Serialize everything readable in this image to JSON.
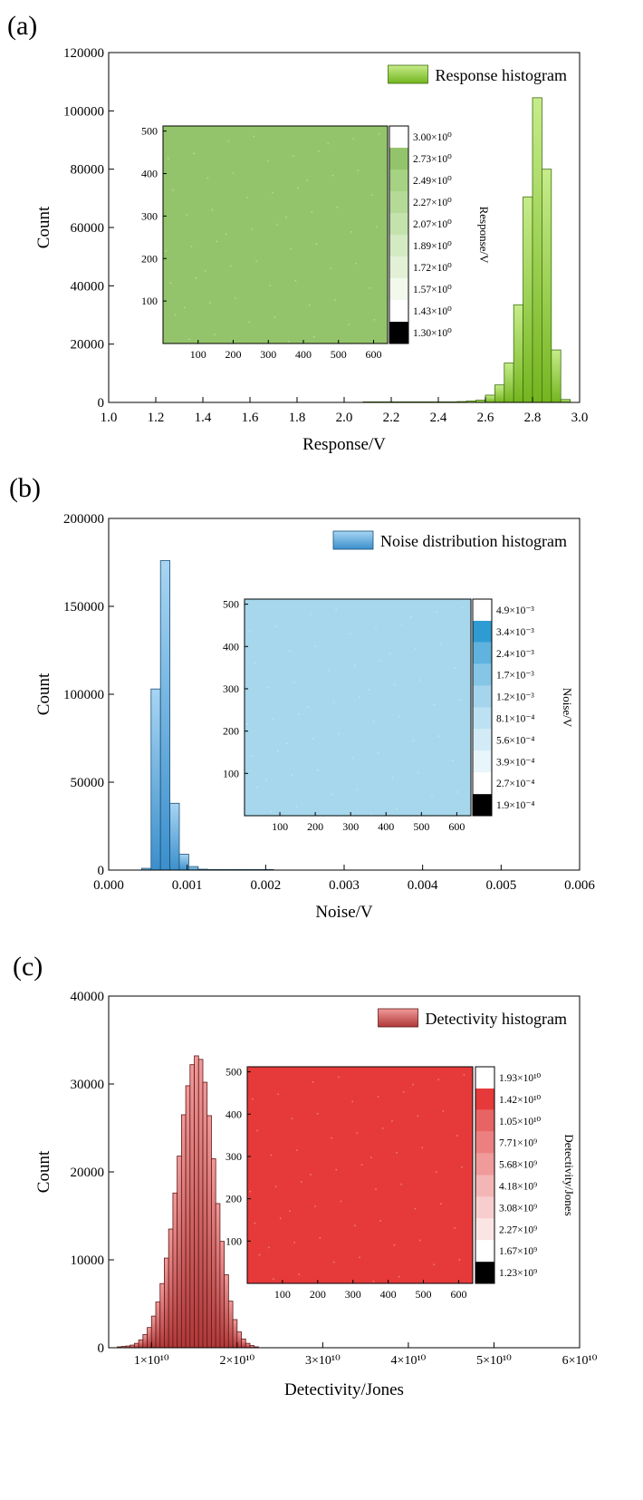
{
  "chart_data": [
    {
      "panel_label": "(a)",
      "type": "bar",
      "xlabel": "Response/V",
      "ylabel": "Count",
      "xlim": [
        1.0,
        3.0
      ],
      "ylim": [
        0,
        120000
      ],
      "x_ticks": [
        "1.0",
        "1.2",
        "1.4",
        "1.6",
        "1.8",
        "2.0",
        "2.2",
        "2.4",
        "2.6",
        "2.8",
        "3.0"
      ],
      "y_ticks": [
        "0",
        "20000",
        "40000",
        "60000",
        "80000",
        "100000",
        "120000"
      ],
      "legend_position": "top-right",
      "colors": {
        "fill_top": "#c6ec8a",
        "fill_bottom": "#74b51f",
        "stroke": "#3e6d10"
      },
      "series": [
        {
          "name": "Response histogram",
          "bin_width": 0.04,
          "x": [
            2.08,
            2.12,
            2.16,
            2.2,
            2.24,
            2.28,
            2.32,
            2.36,
            2.4,
            2.44,
            2.48,
            2.52,
            2.56,
            2.6,
            2.64,
            2.68,
            2.72,
            2.76,
            2.8,
            2.84,
            2.88,
            2.92
          ],
          "values": [
            200,
            200,
            200,
            200,
            200,
            200,
            200,
            200,
            200,
            200,
            300,
            500,
            800,
            2500,
            6000,
            13500,
            33500,
            70500,
            104500,
            80000,
            18000,
            1000
          ]
        }
      ],
      "inset": {
        "type": "heatmap",
        "x_ticks": [
          "100",
          "200",
          "300",
          "400",
          "500",
          "600"
        ],
        "y_ticks": [
          "100",
          "200",
          "300",
          "400",
          "500"
        ],
        "xlim": [
          0,
          640
        ],
        "ylim": [
          0,
          512
        ],
        "fill_color": "#93c46b",
        "colorbar_label": "Response/V",
        "colorbar_levels": [
          "1.30×10⁰",
          "1.43×10⁰",
          "1.57×10⁰",
          "1.72×10⁰",
          "1.89×10⁰",
          "2.07×10⁰",
          "2.27×10⁰",
          "2.49×10⁰",
          "2.73×10⁰",
          "3.00×10⁰"
        ],
        "colorbar_colors": [
          "#000000",
          "#ffffff",
          "#f2f9ec",
          "#e2f1d6",
          "#d4eac3",
          "#c4e2ac",
          "#b5da98",
          "#a5d283",
          "#93c46b",
          "#ffffff"
        ]
      }
    },
    {
      "panel_label": "(b)",
      "type": "bar",
      "xlabel": "Noise/V",
      "ylabel": "Count",
      "xlim": [
        0.0,
        0.006
      ],
      "ylim": [
        0,
        200000
      ],
      "x_ticks": [
        "0.000",
        "0.001",
        "0.002",
        "0.003",
        "0.004",
        "0.005",
        "0.006"
      ],
      "y_ticks": [
        "0",
        "50000",
        "100000",
        "150000",
        "200000"
      ],
      "legend_position": "top-right",
      "colors": {
        "fill_top": "#a8d5f2",
        "fill_bottom": "#3b8fcc",
        "stroke": "#1a4f78"
      },
      "series": [
        {
          "name": "Noise distribution histogram",
          "bin_width": 0.00012,
          "x": [
            0.00042,
            0.00054,
            0.00066,
            0.00078,
            0.0009,
            0.00102,
            0.00114,
            0.00126,
            0.00138,
            0.0015,
            0.00162,
            0.00174,
            0.00186,
            0.00198
          ],
          "values": [
            1000,
            103000,
            176000,
            38000,
            9000,
            2000,
            500,
            300,
            300,
            300,
            300,
            300,
            300,
            300
          ]
        }
      ],
      "inset": {
        "type": "heatmap",
        "x_ticks": [
          "100",
          "200",
          "300",
          "400",
          "500",
          "600"
        ],
        "y_ticks": [
          "100",
          "200",
          "300",
          "400",
          "500"
        ],
        "xlim": [
          0,
          640
        ],
        "ylim": [
          0,
          512
        ],
        "fill_color": "#a6d7ec",
        "colorbar_label": "Noise/V",
        "colorbar_levels": [
          "1.9×10⁻⁴",
          "2.7×10⁻⁴",
          "3.9×10⁻⁴",
          "5.6×10⁻⁴",
          "8.1×10⁻⁴",
          "1.2×10⁻³",
          "1.7×10⁻³",
          "2.4×10⁻³",
          "3.4×10⁻³",
          "4.9×10⁻³"
        ],
        "colorbar_colors": [
          "#000000",
          "#ffffff",
          "#e8f5fb",
          "#d2ebf7",
          "#bce1f2",
          "#a4d5ec",
          "#85c6e6",
          "#5fb3de",
          "#2f9bd3",
          "#ffffff"
        ]
      }
    },
    {
      "panel_label": "(c)",
      "type": "bar",
      "xlabel": "Detectivity/Jones",
      "ylabel": "Count",
      "xlim": [
        5000000000.0,
        60000000000.0
      ],
      "ylim": [
        0,
        40000
      ],
      "x_ticks": [
        "1×10¹⁰",
        "2×10¹⁰",
        "3×10¹⁰",
        "4×10¹⁰",
        "5×10¹⁰",
        "6×10¹⁰"
      ],
      "y_ticks": [
        "0",
        "10000",
        "20000",
        "30000",
        "40000"
      ],
      "legend_position": "top-right",
      "colors": {
        "fill_top": "#f19a9a",
        "fill_bottom": "#b03838",
        "stroke": "#5e1818"
      },
      "series": [
        {
          "name": "Detectivity histogram",
          "bin_width": 500000000.0,
          "x": [
            6000000000.0,
            6500000000.0,
            7000000000.0,
            7500000000.0,
            8000000000.0,
            8500000000.0,
            9000000000.0,
            9500000000.0,
            10000000000.0,
            10500000000.0,
            11000000000.0,
            11500000000.0,
            12000000000.0,
            12500000000.0,
            13000000000.0,
            13500000000.0,
            14000000000.0,
            14500000000.0,
            15000000000.0,
            15500000000.0,
            16000000000.0,
            16500000000.0,
            17000000000.0,
            17500000000.0,
            18000000000.0,
            18500000000.0,
            19000000000.0,
            19500000000.0,
            20000000000.0,
            20500000000.0,
            21000000000.0,
            21500000000.0,
            22000000000.0
          ],
          "values": [
            100,
            150,
            200,
            300,
            500,
            900,
            1500,
            2300,
            3600,
            5200,
            7300,
            10200,
            13500,
            17600,
            21800,
            26500,
            29800,
            32200,
            33200,
            32800,
            30200,
            26400,
            21500,
            16400,
            12100,
            8300,
            5300,
            3200,
            1800,
            1000,
            500,
            250,
            100
          ]
        }
      ],
      "inset": {
        "type": "heatmap",
        "x_ticks": [
          "100",
          "200",
          "300",
          "400",
          "500",
          "600"
        ],
        "y_ticks": [
          "100",
          "200",
          "300",
          "400",
          "500"
        ],
        "xlim": [
          0,
          640
        ],
        "ylim": [
          0,
          512
        ],
        "fill_color": "#e63a3a",
        "colorbar_label": "Detectivity/Jones",
        "colorbar_levels": [
          "1.23×10⁹",
          "1.67×10⁹",
          "2.27×10⁹",
          "3.08×10⁹",
          "4.18×10⁹",
          "5.68×10⁹",
          "7.71×10⁹",
          "1.05×10¹⁰",
          "1.42×10¹⁰",
          "1.93×10¹⁰"
        ],
        "colorbar_colors": [
          "#000000",
          "#ffffff",
          "#fbe4e4",
          "#f8cdcd",
          "#f4b5b5",
          "#f09a9a",
          "#ec8080",
          "#e86464",
          "#e63a3a",
          "#ffffff"
        ]
      }
    }
  ]
}
